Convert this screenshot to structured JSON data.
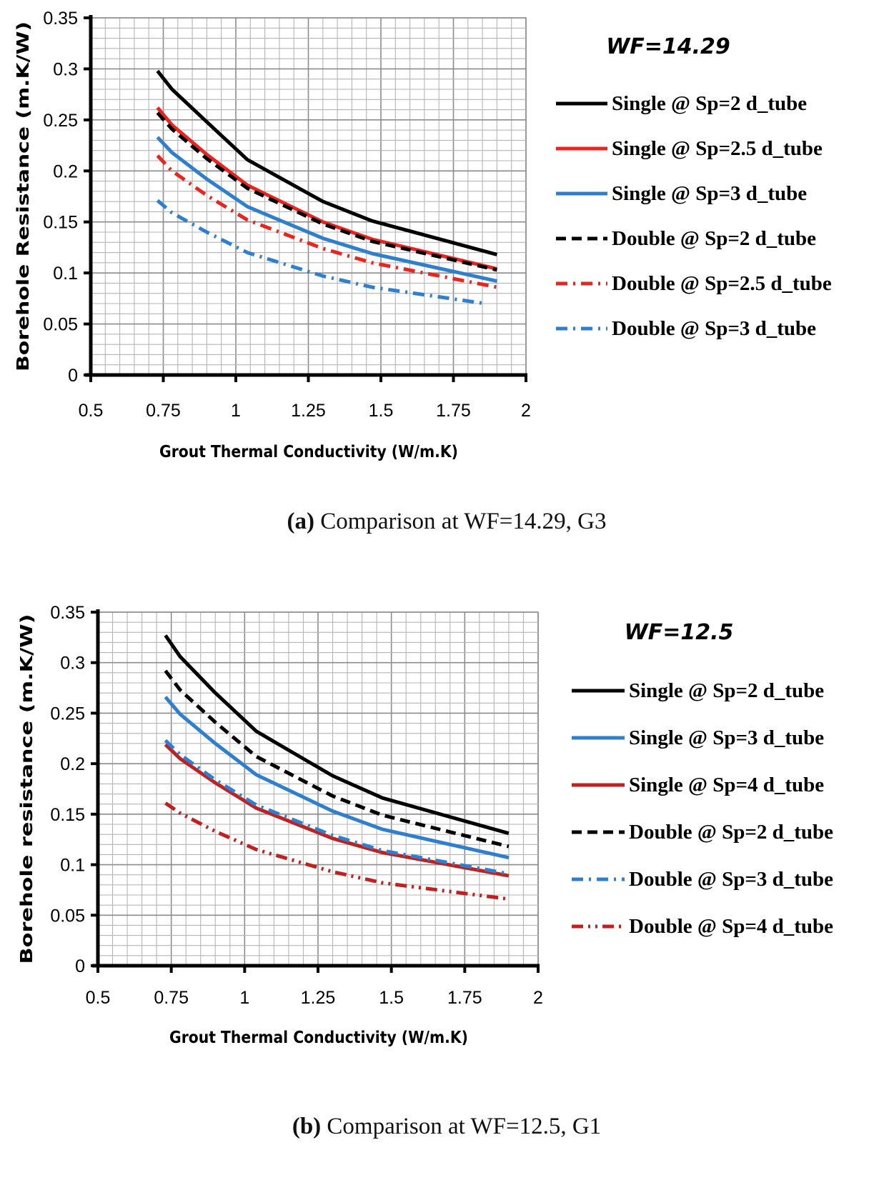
{
  "chart_data": [
    {
      "type": "line",
      "title": "WF=14.29",
      "caption_label": "(a)",
      "caption_text": "Comparison at WF=14.29, G3",
      "xlabel": "Grout Thermal Conductivity (W/m.K)",
      "ylabel": "Borehole Resistance (m.K/W)",
      "xlim": [
        0.5,
        2
      ],
      "ylim": [
        0,
        0.35
      ],
      "x_ticks": [
        "0.5",
        "0.75",
        "1",
        "1.25",
        "1.5",
        "1.75",
        "2"
      ],
      "y_ticks": [
        "0",
        "0.05",
        "0.1",
        "0.15",
        "0.2",
        "0.25",
        "0.3",
        "0.35"
      ],
      "grid": true,
      "legend_position": "right",
      "series": [
        {
          "name": "Single @ Sp=2 d_tube",
          "color": "#000000",
          "dash": "solid",
          "x": [
            0.73,
            0.78,
            0.9,
            1.04,
            1.3,
            1.47,
            1.9
          ],
          "y": [
            0.298,
            0.28,
            0.248,
            0.211,
            0.17,
            0.151,
            0.118
          ]
        },
        {
          "name": "Single @ Sp=2.5 d_tube",
          "color": "#e8251f",
          "dash": "solid",
          "x": [
            0.73,
            0.78,
            0.9,
            1.04,
            1.3,
            1.47,
            1.9
          ],
          "y": [
            0.262,
            0.245,
            0.216,
            0.186,
            0.15,
            0.133,
            0.104
          ]
        },
        {
          "name": "Single @ Sp=3 d_tube",
          "color": "#2f7fcf",
          "dash": "solid",
          "x": [
            0.73,
            0.78,
            0.9,
            1.04,
            1.3,
            1.47,
            1.9
          ],
          "y": [
            0.233,
            0.218,
            0.192,
            0.165,
            0.134,
            0.119,
            0.092
          ]
        },
        {
          "name": "Double @ Sp=2 d_tube",
          "color": "#000000",
          "dash": "dash",
          "x": [
            0.73,
            0.78,
            0.9,
            1.04,
            1.3,
            1.47,
            1.9
          ],
          "y": [
            0.257,
            0.241,
            0.212,
            0.183,
            0.148,
            0.131,
            0.103
          ]
        },
        {
          "name": "Double @ Sp=2.5 d_tube",
          "color": "#e8251f",
          "dash": "dashdot",
          "x": [
            0.73,
            0.78,
            0.9,
            1.04,
            1.3,
            1.47,
            1.9
          ],
          "y": [
            0.215,
            0.2,
            0.176,
            0.152,
            0.124,
            0.11,
            0.086
          ]
        },
        {
          "name": "Double @ Sp=3 d_tube",
          "color": "#2f7fcf",
          "dash": "dashdot",
          "x": [
            0.73,
            0.78,
            0.9,
            1.04,
            1.3,
            1.47,
            1.86
          ],
          "y": [
            0.171,
            0.159,
            0.14,
            0.12,
            0.097,
            0.086,
            0.07
          ]
        }
      ]
    },
    {
      "type": "line",
      "title": "WF=12.5",
      "caption_label": "(b)",
      "caption_text": "Comparison at WF=12.5, G1",
      "xlabel": "Grout Thermal Conductivity (W/m.K)",
      "ylabel": "Borehole resistance (m.K/W)",
      "xlim": [
        0.5,
        2
      ],
      "ylim": [
        0,
        0.35
      ],
      "x_ticks": [
        "0.5",
        "0.75",
        "1",
        "1.25",
        "1.5",
        "1.75",
        "2"
      ],
      "y_ticks": [
        "0",
        "0.05",
        "0.1",
        "0.15",
        "0.2",
        "0.25",
        "0.3",
        "0.35"
      ],
      "grid": true,
      "legend_position": "right",
      "series": [
        {
          "name": "Single @ Sp=2 d_tube",
          "color": "#000000",
          "dash": "solid",
          "x": [
            0.73,
            0.78,
            0.9,
            1.04,
            1.3,
            1.47,
            1.9
          ],
          "y": [
            0.327,
            0.306,
            0.27,
            0.232,
            0.188,
            0.166,
            0.131
          ]
        },
        {
          "name": "Single @ Sp=3 d_tube",
          "color": "#2f7fcf",
          "dash": "solid",
          "x": [
            0.73,
            0.78,
            0.9,
            1.04,
            1.3,
            1.47,
            1.9
          ],
          "y": [
            0.266,
            0.249,
            0.22,
            0.189,
            0.153,
            0.135,
            0.107
          ]
        },
        {
          "name": "Single @ Sp=4 d_tube",
          "color": "#c21f1f",
          "dash": "solid",
          "x": [
            0.73,
            0.78,
            0.9,
            1.04,
            1.3,
            1.47,
            1.9
          ],
          "y": [
            0.219,
            0.205,
            0.181,
            0.156,
            0.126,
            0.112,
            0.089
          ]
        },
        {
          "name": "Double @ Sp=2 d_tube",
          "color": "#000000",
          "dash": "dash",
          "x": [
            0.73,
            0.78,
            0.9,
            1.04,
            1.3,
            1.47,
            1.9
          ],
          "y": [
            0.292,
            0.273,
            0.241,
            0.207,
            0.168,
            0.149,
            0.118
          ]
        },
        {
          "name": "Double @ Sp=3 d_tube",
          "color": "#2f7fcf",
          "dash": "dashdot",
          "x": [
            0.73,
            0.78,
            0.9,
            1.04,
            1.3,
            1.47,
            1.9
          ],
          "y": [
            0.223,
            0.209,
            0.184,
            0.159,
            0.129,
            0.114,
            0.091
          ]
        },
        {
          "name": "Double @ Sp=4 d_tube",
          "color": "#c21f1f",
          "dash": "dashdotdot",
          "x": [
            0.73,
            0.78,
            0.9,
            1.04,
            1.3,
            1.47,
            1.9
          ],
          "y": [
            0.161,
            0.151,
            0.133,
            0.115,
            0.093,
            0.082,
            0.066
          ]
        }
      ]
    }
  ]
}
